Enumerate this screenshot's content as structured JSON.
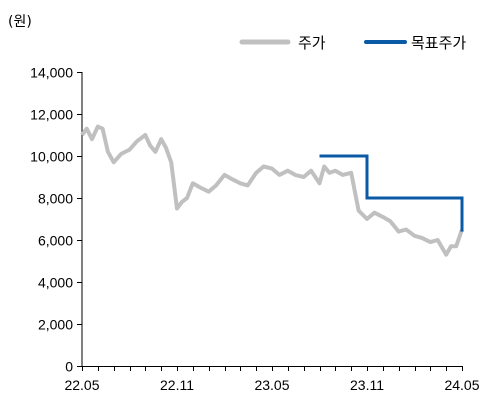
{
  "chart_data": {
    "type": "line",
    "unit_label": "(원)",
    "x_tick_labels": [
      "22.05",
      "22.11",
      "23.05",
      "23.11",
      "24.05"
    ],
    "y_tick_labels": [
      "0",
      "2,000",
      "4,000",
      "6,000",
      "8,000",
      "10,000",
      "12,000",
      "14,000"
    ],
    "ylim": [
      0,
      14000
    ],
    "xlim": [
      "2022-05",
      "2024-05"
    ],
    "legend_position": "top-right",
    "grid": false,
    "series": [
      {
        "name": "주가",
        "color": "#c0c0c0",
        "points": [
          [
            "2022-05",
            11000
          ],
          [
            "2022-05-10",
            11300
          ],
          [
            "2022-05-20",
            10800
          ],
          [
            "2022-06",
            11400
          ],
          [
            "2022-06-10",
            11300
          ],
          [
            "2022-06-20",
            10200
          ],
          [
            "2022-07",
            9700
          ],
          [
            "2022-07-15",
            10100
          ],
          [
            "2022-08",
            10300
          ],
          [
            "2022-08-15",
            10700
          ],
          [
            "2022-09",
            11000
          ],
          [
            "2022-09-10",
            10500
          ],
          [
            "2022-09-20",
            10200
          ],
          [
            "2022-10",
            10800
          ],
          [
            "2022-10-10",
            10400
          ],
          [
            "2022-10-20",
            9700
          ],
          [
            "2022-11",
            7500
          ],
          [
            "2022-11-10",
            7800
          ],
          [
            "2022-11-20",
            8000
          ],
          [
            "2022-12",
            8700
          ],
          [
            "2022-12-15",
            8500
          ],
          [
            "2023-01",
            8300
          ],
          [
            "2023-01-15",
            8600
          ],
          [
            "2023-02",
            9100
          ],
          [
            "2023-02-15",
            8900
          ],
          [
            "2023-03",
            8700
          ],
          [
            "2023-03-15",
            8600
          ],
          [
            "2023-04",
            9200
          ],
          [
            "2023-04-15",
            9500
          ],
          [
            "2023-05",
            9400
          ],
          [
            "2023-05-15",
            9100
          ],
          [
            "2023-06",
            9300
          ],
          [
            "2023-06-15",
            9100
          ],
          [
            "2023-07",
            9000
          ],
          [
            "2023-07-15",
            9300
          ],
          [
            "2023-08",
            8700
          ],
          [
            "2023-08-10",
            9500
          ],
          [
            "2023-08-20",
            9200
          ],
          [
            "2023-09",
            9300
          ],
          [
            "2023-09-15",
            9100
          ],
          [
            "2023-10",
            9200
          ],
          [
            "2023-10-15",
            7400
          ],
          [
            "2023-11",
            7000
          ],
          [
            "2023-11-15",
            7300
          ],
          [
            "2023-12",
            7100
          ],
          [
            "2023-12-15",
            6900
          ],
          [
            "2024-01",
            6400
          ],
          [
            "2024-01-15",
            6500
          ],
          [
            "2024-02",
            6200
          ],
          [
            "2024-02-15",
            6100
          ],
          [
            "2024-03",
            5900
          ],
          [
            "2024-03-15",
            6000
          ],
          [
            "2024-04",
            5300
          ],
          [
            "2024-04-10",
            5700
          ],
          [
            "2024-04-20",
            5700
          ],
          [
            "2024-05",
            6500
          ]
        ]
      },
      {
        "name": "목표주가",
        "color": "#0b5aa6",
        "points": [
          [
            "2023-08",
            10000
          ],
          [
            "2023-11",
            10000
          ],
          [
            "2023-11",
            8000
          ],
          [
            "2024-05",
            8000
          ],
          [
            "2024-05",
            6400
          ]
        ]
      }
    ]
  }
}
